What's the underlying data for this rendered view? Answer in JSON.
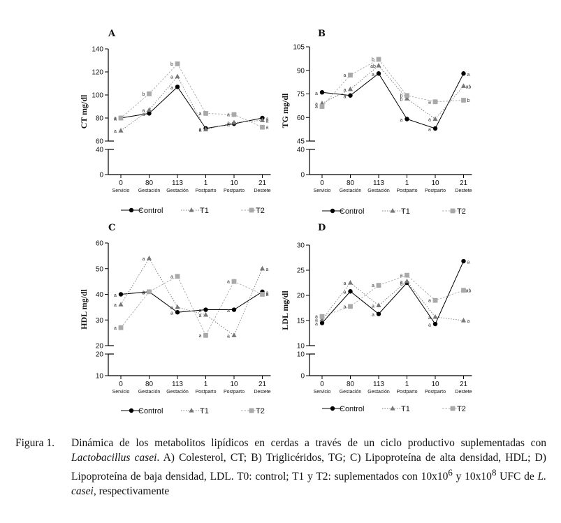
{
  "figure": {
    "x_categories": [
      {
        "num": "0",
        "word": "Servicio"
      },
      {
        "num": "80",
        "word": "Gestación"
      },
      {
        "num": "113",
        "word": "Gestación"
      },
      {
        "num": "1",
        "word": "Postparto"
      },
      {
        "num": "10",
        "word": "Postparto"
      },
      {
        "num": "21",
        "word": "Destete"
      }
    ],
    "legend": [
      "Control",
      "T1",
      "T2"
    ],
    "colors": {
      "Control": "#000000",
      "T1": "#777777",
      "T2": "#a9a9a9"
    }
  },
  "chart_data": [
    {
      "type": "line",
      "panel": "A",
      "ylabel": "CT  mg/dl",
      "ylim_upper": [
        60,
        140
      ],
      "ylim_lower": [
        0,
        40
      ],
      "yticks_upper": [
        60,
        80,
        100,
        120,
        140
      ],
      "yticks_lower": [
        0,
        40
      ],
      "categories": [
        "0 Servicio",
        "80 Gestación",
        "113 Gestación",
        "1 Postparto",
        "10 Postparto",
        "21 Destete"
      ],
      "series": [
        {
          "name": "Control",
          "values": [
            80,
            84,
            107,
            71,
            75,
            80
          ],
          "labels": [
            "a",
            "a",
            "a",
            "a",
            "a",
            "a"
          ]
        },
        {
          "name": "T1",
          "values": [
            69,
            87,
            116,
            70,
            76,
            78
          ],
          "labels": [
            "a",
            "a",
            "a",
            "a",
            "a",
            "a"
          ]
        },
        {
          "name": "T2",
          "values": [
            80,
            101,
            127,
            84,
            83,
            72
          ],
          "labels": [
            "a",
            "b",
            "b",
            "a",
            "a",
            "a"
          ]
        }
      ]
    },
    {
      "type": "line",
      "panel": "B",
      "ylabel": "TG mg/dl",
      "ylim_upper": [
        45,
        105
      ],
      "ylim_lower": [
        0,
        40
      ],
      "yticks_upper": [
        45,
        60,
        75,
        90,
        105
      ],
      "yticks_lower": [
        0,
        40
      ],
      "categories": [
        "0 Servicio",
        "80 Gestación",
        "113 Gestación",
        "1 Postparto",
        "10 Postparto",
        "21 Destete"
      ],
      "series": [
        {
          "name": "Control",
          "values": [
            76,
            74,
            88,
            59,
            53,
            88
          ],
          "labels": [
            "a",
            "a",
            "a",
            "a",
            "a",
            "a"
          ]
        },
        {
          "name": "T1",
          "values": [
            69,
            78,
            93,
            72,
            59,
            80
          ],
          "labels": [
            "a",
            "a",
            "ab",
            "b",
            "a",
            "ab"
          ]
        },
        {
          "name": "T2",
          "values": [
            67,
            87,
            97,
            74,
            70,
            71
          ],
          "labels": [
            "a",
            "a",
            "b",
            "b",
            "a",
            "b"
          ]
        }
      ]
    },
    {
      "type": "line",
      "panel": "C",
      "ylabel": "HDL mg/dl",
      "ylim_upper": [
        20,
        60
      ],
      "ylim_lower": [
        10,
        20
      ],
      "yticks_upper": [
        20,
        30,
        40,
        50,
        60
      ],
      "yticks_lower": [
        10,
        20
      ],
      "categories": [
        "0 Servicio",
        "80 Gestación",
        "113 Gestación",
        "1 Postparto",
        "10 Postparto",
        "21 Destete"
      ],
      "series": [
        {
          "name": "Control",
          "values": [
            40,
            41,
            33,
            34,
            34,
            41
          ],
          "labels": [
            "a",
            "a",
            "a",
            "a",
            "a",
            "a"
          ]
        },
        {
          "name": "T1",
          "values": [
            36,
            54,
            35,
            32,
            24,
            50
          ],
          "labels": [
            "a",
            "a",
            "a",
            "a",
            "a",
            "a"
          ]
        },
        {
          "name": "T2",
          "values": [
            27,
            41,
            47,
            24,
            45,
            40
          ],
          "labels": [
            "a",
            "a",
            "a",
            "a",
            "a",
            "a"
          ]
        }
      ]
    },
    {
      "type": "line",
      "panel": "D",
      "ylabel": "LDL mg/dl",
      "ylim_upper": [
        10,
        30
      ],
      "ylim_lower": [
        0,
        10
      ],
      "yticks_upper": [
        10,
        15,
        20,
        25,
        30
      ],
      "yticks_lower": [
        0,
        10
      ],
      "categories": [
        "0 Servicio",
        "80 Gestación",
        "113 Gestación",
        "1 Postparto",
        "10 Postparto",
        "21 Destete"
      ],
      "series": [
        {
          "name": "Control",
          "values": [
            14.5,
            20.8,
            16.3,
            22.5,
            14.3,
            26.8
          ],
          "labels": [
            "a",
            "a",
            "a",
            "a",
            "a",
            "a"
          ]
        },
        {
          "name": "T1",
          "values": [
            15.2,
            22.5,
            18,
            22.8,
            15.7,
            15
          ],
          "labels": [
            "a",
            "a",
            "a",
            "a",
            "a",
            "a"
          ]
        },
        {
          "name": "T2",
          "values": [
            15.8,
            17.8,
            22,
            24,
            19,
            21
          ],
          "labels": [
            "a",
            "a",
            "a",
            "a",
            "a",
            "ab"
          ]
        }
      ]
    }
  ],
  "caption": {
    "label": "Figura 1.",
    "part1": "Dinámica de los metabolitos lipídicos en cerdas a través de un ciclo productivo suplementadas con ",
    "species": "Lactobacillus casei",
    "part2": ". A) Colesterol, CT; B) Triglicéridos, TG; C) Lipoproteína de alta densidad, HDL; D) Lipoproteína de baja densidad, LDL. T0: control; T1 y T2: suplementados con 10x10",
    "exp1": "6",
    "part3": " y 10x10",
    "exp2": "8",
    "part4": " UFC de ",
    "species_short": "L. casei",
    "part5": ", respectivamente"
  }
}
